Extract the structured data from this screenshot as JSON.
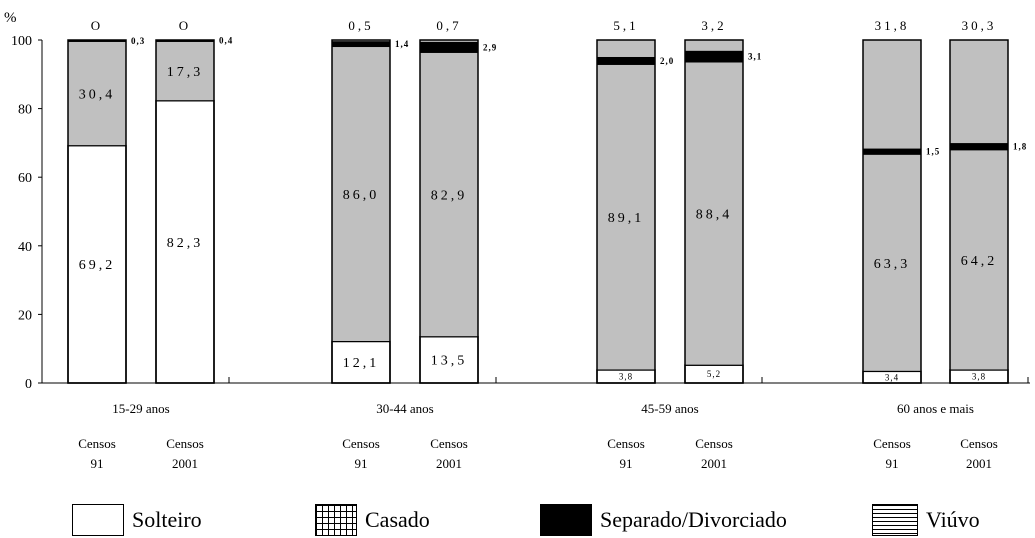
{
  "chart_data": {
    "type": "bar",
    "stacked": true,
    "y_unit": "%",
    "ylim": [
      0,
      100
    ],
    "y_ticks": [
      0,
      20,
      40,
      60,
      80,
      100
    ],
    "groups": [
      {
        "label": "15-29 anos",
        "bars": [
          {
            "census": [
              "Censos",
              "91"
            ],
            "solteiro": 69.2,
            "casado": 30.4,
            "separado": 0.3,
            "viuvo": 0.0,
            "labels": {
              "solteiro": "69,2",
              "casado": "30,4",
              "separado": "0,3",
              "viuvo": "O"
            }
          },
          {
            "census": [
              "Censos",
              "2001"
            ],
            "solteiro": 82.3,
            "casado": 17.3,
            "separado": 0.4,
            "viuvo": 0.0,
            "labels": {
              "solteiro": "82,3",
              "casado": "17,3",
              "separado": "0,4",
              "viuvo": "O"
            }
          }
        ]
      },
      {
        "label": "30-44 anos",
        "bars": [
          {
            "census": [
              "Censos",
              "91"
            ],
            "solteiro": 12.1,
            "casado": 86.0,
            "separado": 1.4,
            "viuvo": 0.5,
            "labels": {
              "solteiro": "12,1",
              "casado": "86,0",
              "separado": "1,4",
              "viuvo": "0,5"
            }
          },
          {
            "census": [
              "Censos",
              "2001"
            ],
            "solteiro": 13.5,
            "casado": 82.9,
            "separado": 2.9,
            "viuvo": 0.7,
            "labels": {
              "solteiro": "13,5",
              "casado": "82,9",
              "separado": "2,9",
              "viuvo": "0,7"
            }
          }
        ]
      },
      {
        "label": "45-59 anos",
        "bars": [
          {
            "census": [
              "Censos",
              "91"
            ],
            "solteiro": 3.8,
            "casado": 89.1,
            "separado": 2.0,
            "viuvo": 5.1,
            "labels": {
              "solteiro": "3,8",
              "casado": "89,1",
              "separado": "2,0",
              "viuvo": "5,1"
            }
          },
          {
            "census": [
              "Censos",
              "2001"
            ],
            "solteiro": 5.2,
            "casado": 88.4,
            "separado": 3.1,
            "viuvo": 3.2,
            "labels": {
              "solteiro": "5,2",
              "casado": "88,4",
              "separado": "3,1",
              "viuvo": "3,2"
            }
          }
        ]
      },
      {
        "label": "60 anos e mais",
        "bars": [
          {
            "census": [
              "Censos",
              "91"
            ],
            "solteiro": 3.4,
            "casado": 63.3,
            "separado": 1.5,
            "viuvo": 31.8,
            "labels": {
              "solteiro": "3,4",
              "casado": "63,3",
              "separado": "1,5",
              "viuvo": "31,8"
            }
          },
          {
            "census": [
              "Censos",
              "2001"
            ],
            "solteiro": 3.8,
            "casado": 64.2,
            "separado": 1.8,
            "viuvo": 30.3,
            "labels": {
              "solteiro": "3,8",
              "casado": "64,2",
              "separado": "1,8",
              "viuvo": "30,3"
            }
          }
        ]
      }
    ],
    "colors": {
      "solteiro": "#ffffff",
      "casado": "#c0c0c0",
      "separado": "#000000",
      "viuvo": "#ffffff"
    },
    "legend": {
      "position": "bottom",
      "items": [
        {
          "key": "solteiro",
          "label": "Solteiro"
        },
        {
          "key": "casado",
          "label": "Casado"
        },
        {
          "key": "separado",
          "label": "Separado/Divorciado"
        },
        {
          "key": "viuvo",
          "label": "Viúvo"
        }
      ]
    }
  }
}
